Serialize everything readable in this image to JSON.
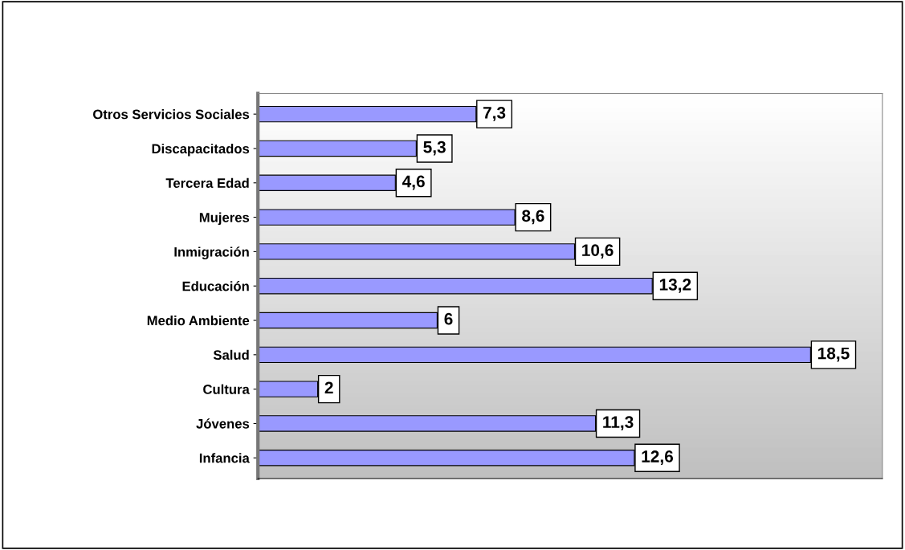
{
  "chart_data": {
    "type": "bar",
    "orientation": "horizontal",
    "categories": [
      "Otros Servicios Sociales",
      "Discapacitados",
      "Tercera Edad",
      "Mujeres",
      "Inmigración",
      "Educación",
      "Medio Ambiente",
      "Salud",
      "Cultura",
      "Jóvenes",
      "Infancia"
    ],
    "values": [
      7.3,
      5.3,
      4.6,
      8.6,
      10.6,
      13.2,
      6,
      18.5,
      2,
      11.3,
      12.6
    ],
    "value_labels": [
      "7,3",
      "5,3",
      "4,6",
      "8,6",
      "10,6",
      "13,2",
      "6",
      "18,5",
      "2",
      "11,3",
      "12,6"
    ],
    "color": "#9999ff",
    "grid": false,
    "legend": false
  }
}
